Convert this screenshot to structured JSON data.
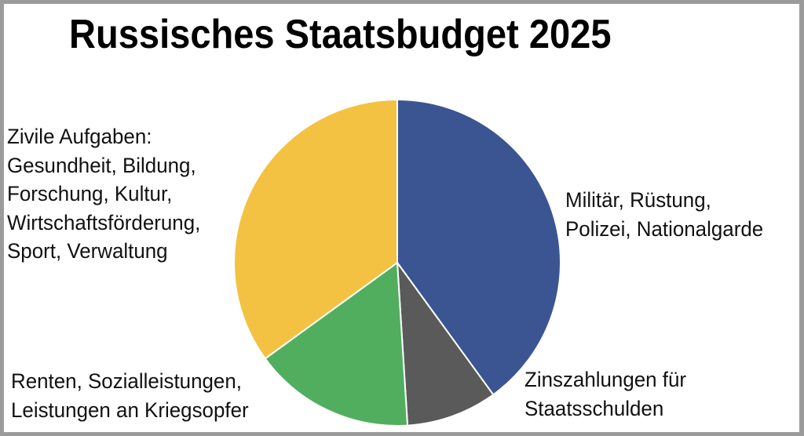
{
  "title": "Russisches Staatsbudget 2025",
  "colors": {
    "military": "#3a5592",
    "interest": "#5a5a5a",
    "social": "#52ae5f",
    "civil": "#f4c242",
    "border": "#9b9b9b"
  },
  "labels": {
    "civil": [
      "Zivile Aufgaben:",
      "Gesundheit, Bildung,",
      "Forschung, Kultur,",
      "Wirtschaftsförderung,",
      "Sport, Verwaltung"
    ],
    "military": [
      "Militär, Rüstung,",
      "Polizei, Nationalgarde"
    ],
    "interest": [
      "Zinszahlungen für",
      "Staatsschulden"
    ],
    "social": [
      "Renten, Sozialleistungen,",
      "Leistungen an Kriegsopfer"
    ]
  },
  "chart_data": {
    "type": "pie",
    "title": "Russisches Staatsbudget 2025",
    "start_angle_deg": 0,
    "direction": "clockwise",
    "categories": [
      "Militär, Rüstung, Polizei, Nationalgarde",
      "Zinszahlungen für Staatsschulden",
      "Renten, Sozialleistungen, Leistungen an Kriegsopfer",
      "Zivile Aufgaben: Gesundheit, Bildung, Forschung, Kultur, Wirtschaftsförderung, Sport, Verwaltung"
    ],
    "values": [
      40,
      9,
      16,
      35
    ],
    "unit": "percent (estimated from slice angles)",
    "colors": [
      "#3a5592",
      "#5a5a5a",
      "#52ae5f",
      "#f4c242"
    ],
    "legend": "none (direct labels)"
  }
}
